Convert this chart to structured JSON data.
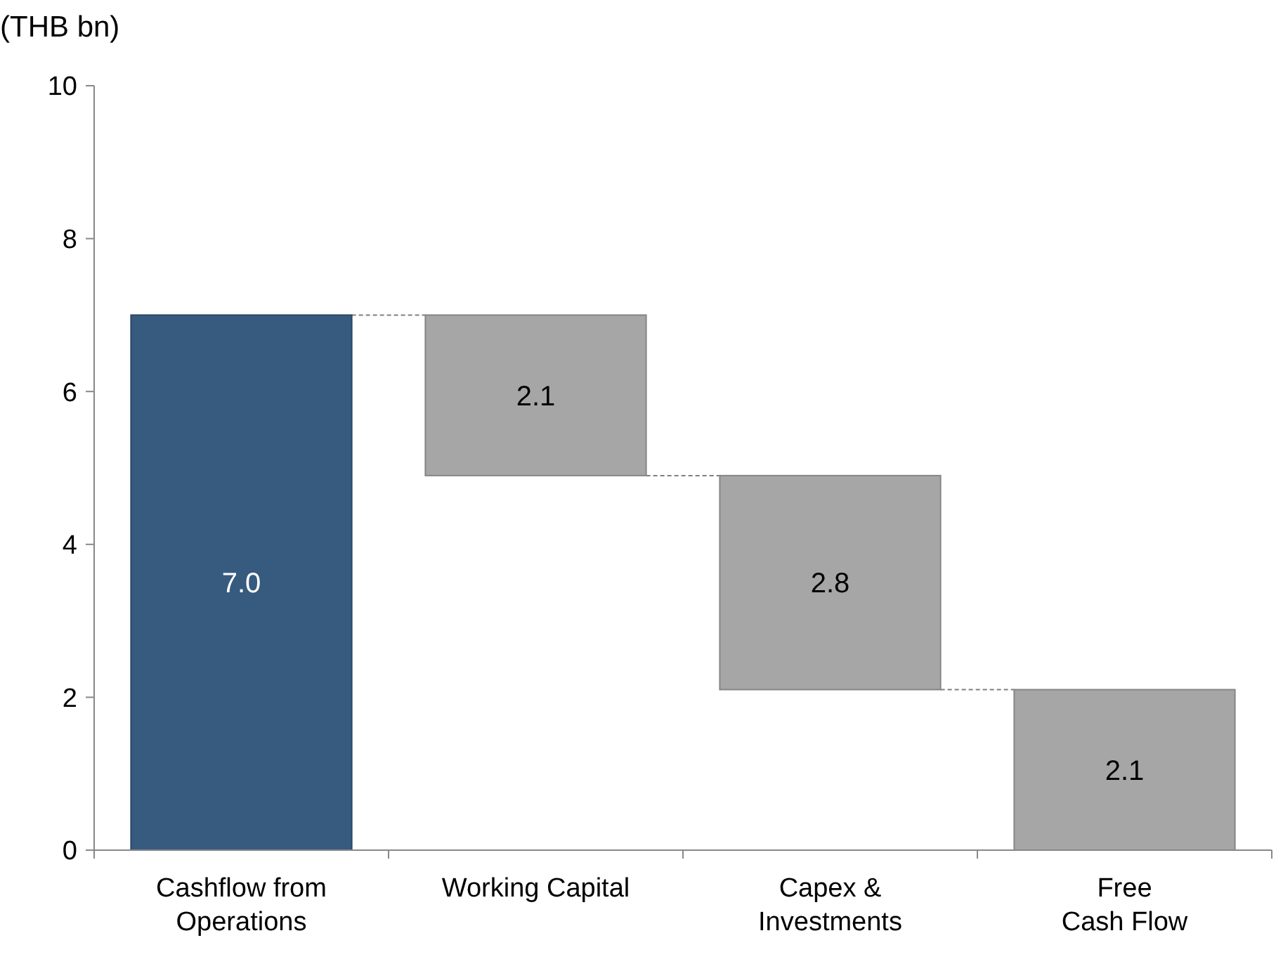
{
  "chart_data": {
    "type": "bar",
    "ylabel": "(THB bn)",
    "categories": [
      "Cashflow from\nOperations",
      "Working Capital",
      "Capex &\nInvestments",
      "Free\nCash Flow"
    ],
    "values": [
      7.0,
      2.1,
      2.8,
      2.1
    ],
    "base": [
      0,
      4.9,
      2.1,
      0
    ],
    "colors": [
      "#375a7f",
      "#a6a6a6",
      "#a6a6a6",
      "#a6a6a6"
    ],
    "value_labels": [
      "7.0",
      "2.1",
      "2.8",
      "2.1"
    ],
    "ylim": [
      0,
      10
    ],
    "yticks": [
      0,
      2,
      4,
      6,
      8,
      10
    ],
    "grid": false
  }
}
